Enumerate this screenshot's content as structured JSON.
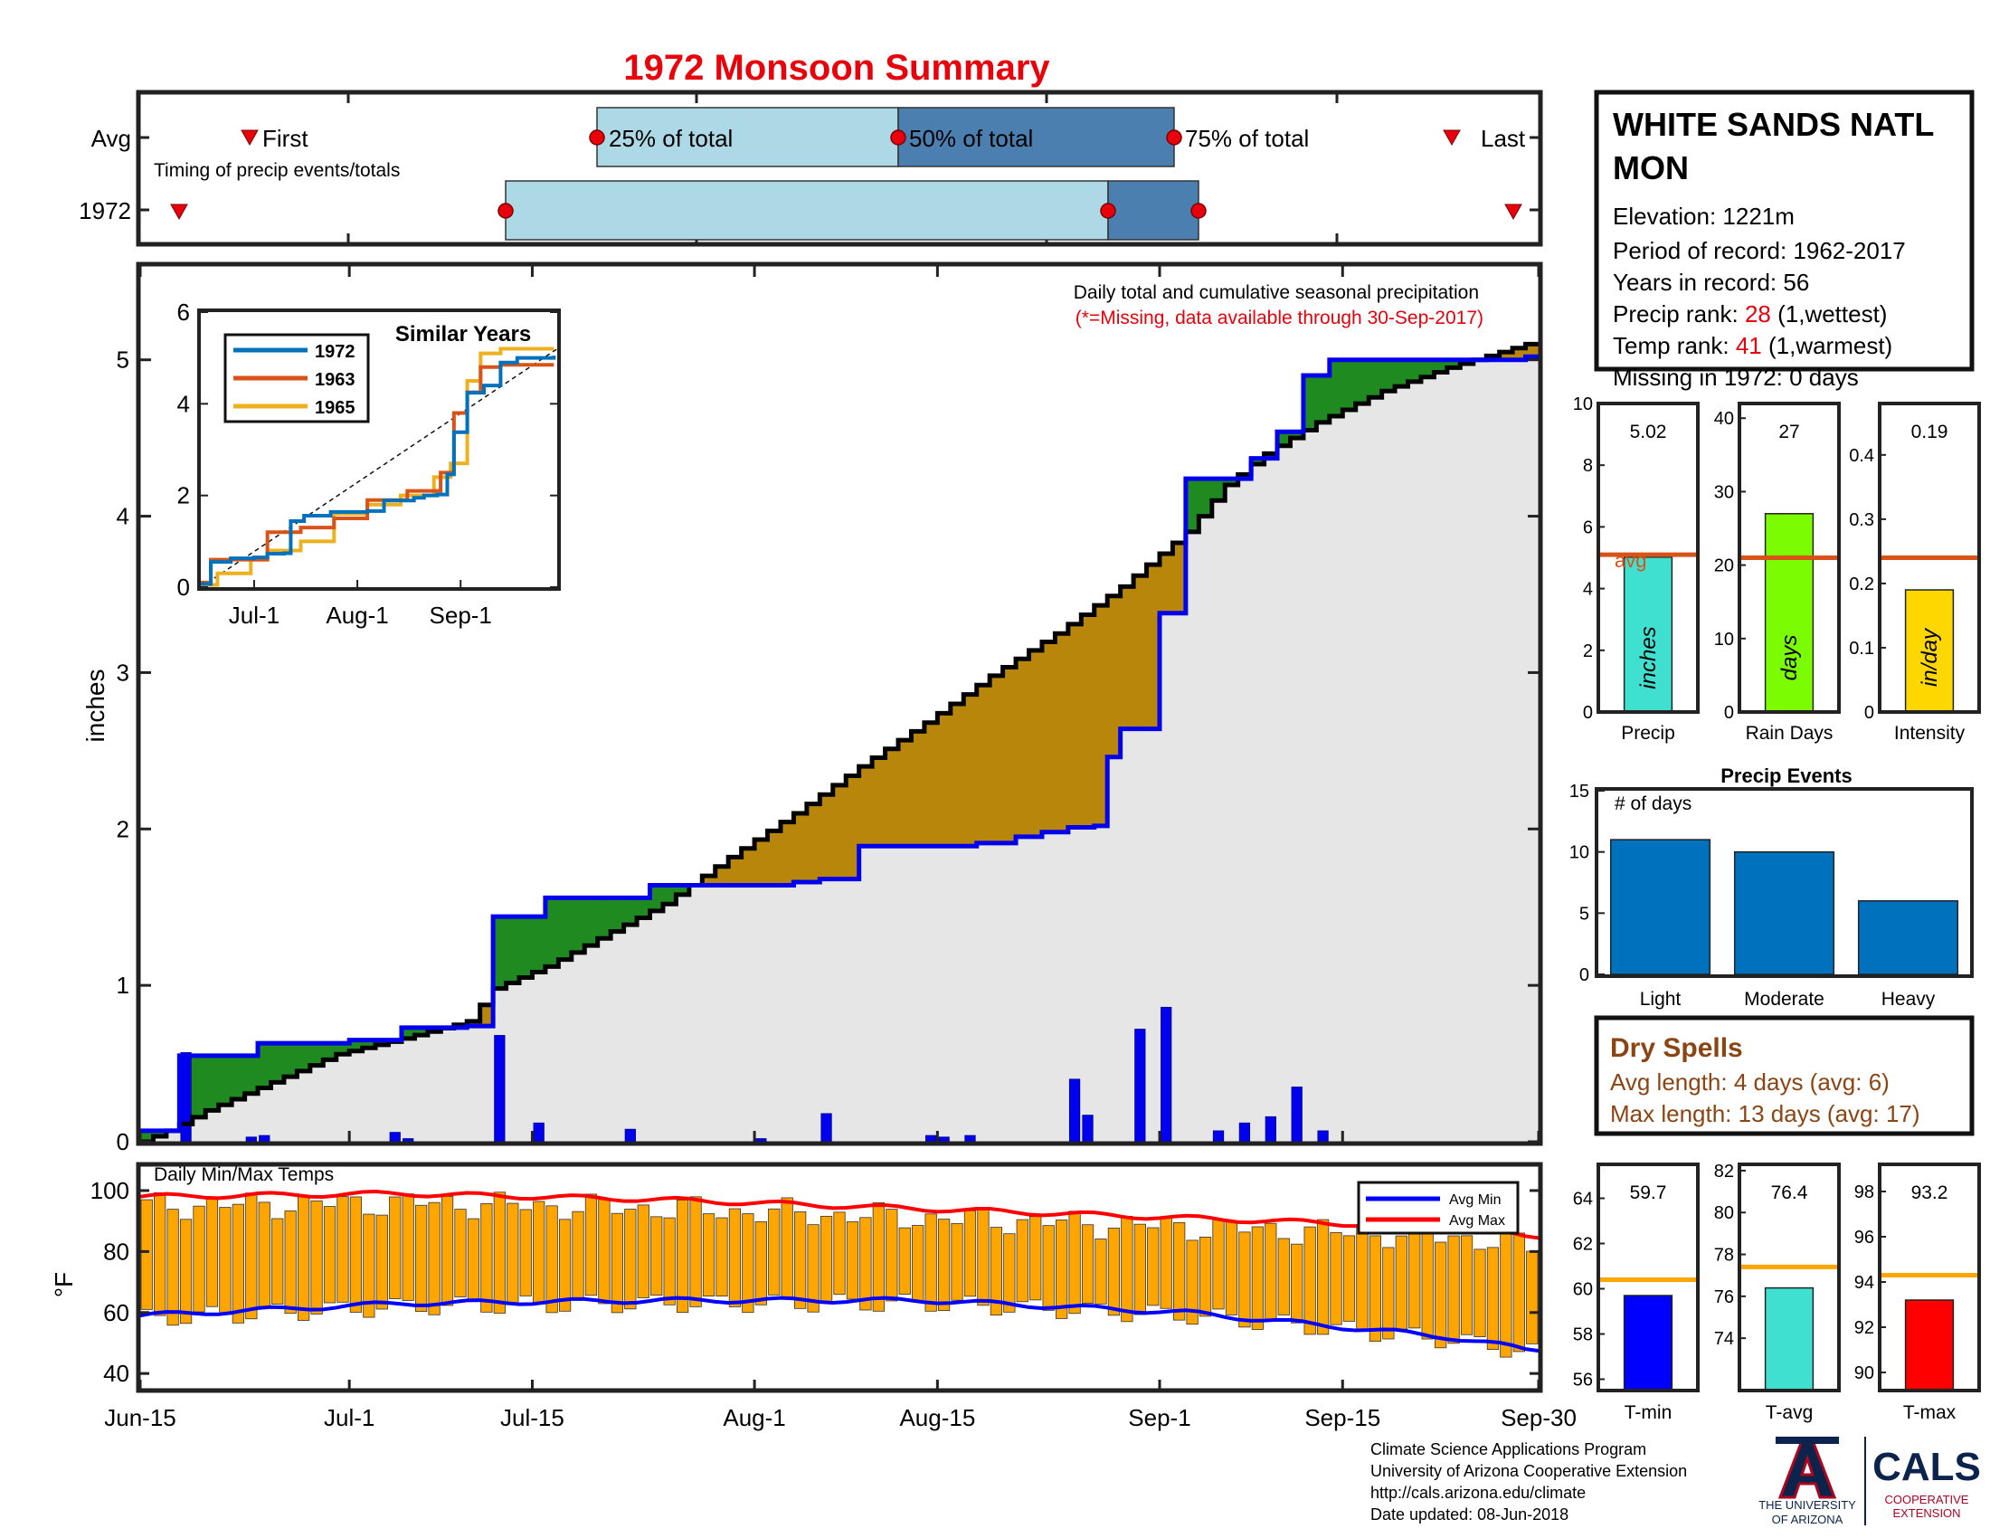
{
  "title": "1972 Monsoon Summary",
  "timing": {
    "caption": "Timing of precip events/totals",
    "row_labels": [
      "Avg",
      "1972"
    ],
    "first_label": "First",
    "last_label": "Last",
    "q25_label": "25% of total",
    "q50_label": "50% of total",
    "q75_label": "75% of total"
  },
  "station": {
    "name_line1": "WHITE SANDS NATL",
    "name_line2": "MON",
    "elevation": "Elevation: 1221m",
    "period": "Period of record: 1962-2017",
    "years": "Years in record: 56",
    "precip_rank_prefix": "Precip rank: ",
    "precip_rank": "28",
    "precip_rank_suffix": " (1,wettest)",
    "temp_rank_prefix": "Temp rank: ",
    "temp_rank": "41",
    "temp_rank_suffix": " (1,warmest)",
    "missing": "Missing in 1972: 0 days"
  },
  "main": {
    "ylabel": "inches",
    "caption": "Daily total and cumulative seasonal precipitation",
    "caption_note": "(*=Missing, data available through 30-Sep-2017)"
  },
  "inset": {
    "title": "Similar Years",
    "legend": [
      "1972",
      "1963",
      "1965"
    ]
  },
  "temps": {
    "caption": "Daily Min/Max Temps",
    "ylabel": "°F",
    "legend_min": "Avg Min",
    "legend_max": "Avg Max"
  },
  "summary_bars": [
    {
      "value_text": "5.02",
      "unit": "inches",
      "label": "Precip",
      "avg_label": "avg"
    },
    {
      "value_text": "27",
      "unit": "days",
      "label": "Rain Days"
    },
    {
      "value_text": "0.19",
      "unit": "in/day",
      "label": "Intensity"
    }
  ],
  "events": {
    "title": "Precip Events",
    "ylabel": "# of days",
    "categories": [
      "Light",
      "Moderate",
      "Heavy"
    ]
  },
  "dry_spells": {
    "title": "Dry Spells",
    "avg_line": "Avg length: 4 days (avg: 6)",
    "max_line": "Max length: 13 days (avg: 17)"
  },
  "temp_summary": [
    {
      "value_text": "59.7",
      "label": "T-min"
    },
    {
      "value_text": "76.4",
      "label": "T-avg"
    },
    {
      "value_text": "93.2",
      "label": "T-max"
    }
  ],
  "footer": {
    "line1": "Climate Science Applications Program",
    "line2": "University of Arizona Cooperative Extension",
    "line3": "http://cals.arizona.edu/climate",
    "line4": " Date updated: 08-Jun-2018"
  },
  "logos": {
    "ua_text1": "THE UNIVERSITY",
    "ua_text2": "OF ARIZONA",
    "cals": "CALS",
    "cals_sub1": "COOPERATIVE",
    "cals_sub2": "EXTENSION"
  },
  "colors": {
    "title": "#e8000b",
    "rank": "#e8000b",
    "dry": "#8b4513",
    "above": "#1f8a1f",
    "below": "#b8860b",
    "fill": "#e6e6e6",
    "obs_line": "#0000ee",
    "avg_line": "#000000",
    "light_blue": "#add8e6",
    "steel_blue": "#4a7fb0",
    "temp_bar": "#ffa500",
    "avg_min": "#0000ff",
    "avg_max": "#ff0000",
    "avg_ref": "#d95319",
    "event_bar": "#0072bd",
    "inset_1972": "#0072bd",
    "inset_1963": "#d95319",
    "inset_1965": "#edb120",
    "ua_navy": "#0c234b",
    "ua_red": "#ab0520"
  },
  "chart_data": [
    {
      "type": "line",
      "name": "cumulative",
      "x_ticks": [
        "Jun-15",
        "Jul-1",
        "Jul-15",
        "Aug-1",
        "Aug-15",
        "Sep-1",
        "Sep-15",
        "Sep-30"
      ],
      "y_ticks": [
        0,
        1,
        2,
        3,
        4,
        5
      ],
      "ylim": [
        0,
        5.6
      ],
      "ylabel": "inches",
      "observed_1972_steps": [
        [
          0,
          0.07
        ],
        [
          3,
          0.55
        ],
        [
          9,
          0.63
        ],
        [
          16,
          0.65
        ],
        [
          20,
          0.73
        ],
        [
          25,
          0.74
        ],
        [
          27,
          1.44
        ],
        [
          31,
          1.56
        ],
        [
          39,
          1.64
        ],
        [
          50,
          1.66
        ],
        [
          52,
          1.68
        ],
        [
          55,
          1.89
        ],
        [
          64,
          1.91
        ],
        [
          67,
          1.95
        ],
        [
          69,
          1.98
        ],
        [
          71,
          2.01
        ],
        [
          73,
          2.02
        ],
        [
          74,
          2.46
        ],
        [
          75,
          2.64
        ],
        [
          78,
          3.38
        ],
        [
          80,
          4.24
        ],
        [
          85,
          4.37
        ],
        [
          87,
          4.54
        ],
        [
          89,
          4.9
        ],
        [
          91,
          5.0
        ],
        [
          106,
          5.02
        ]
      ],
      "average_cumulative": [
        [
          0,
          0
        ],
        [
          2,
          0.07
        ],
        [
          5,
          0.2
        ],
        [
          10,
          0.38
        ],
        [
          15,
          0.56
        ],
        [
          20,
          0.66
        ],
        [
          25,
          0.77
        ],
        [
          27,
          0.98
        ],
        [
          31,
          1.12
        ],
        [
          35,
          1.3
        ],
        [
          40,
          1.52
        ],
        [
          45,
          1.82
        ],
        [
          50,
          2.1
        ],
        [
          55,
          2.4
        ],
        [
          60,
          2.68
        ],
        [
          65,
          2.98
        ],
        [
          70,
          3.25
        ],
        [
          75,
          3.55
        ],
        [
          80,
          3.9
        ],
        [
          83,
          4.2
        ],
        [
          86,
          4.4
        ],
        [
          90,
          4.6
        ],
        [
          95,
          4.8
        ],
        [
          100,
          4.95
        ],
        [
          106,
          5.1
        ]
      ],
      "daily_precip": [
        [
          3,
          0.57
        ],
        [
          8,
          0.03
        ],
        [
          9,
          0.04
        ],
        [
          19,
          0.06
        ],
        [
          20,
          0.02
        ],
        [
          27,
          0.68
        ],
        [
          30,
          0.12
        ],
        [
          37,
          0.08
        ],
        [
          47,
          0.02
        ],
        [
          52,
          0.18
        ],
        [
          60,
          0.04
        ],
        [
          61,
          0.03
        ],
        [
          63,
          0.04
        ],
        [
          71,
          0.4
        ],
        [
          72,
          0.17
        ],
        [
          76,
          0.72
        ],
        [
          78,
          0.86
        ],
        [
          82,
          0.07
        ],
        [
          84,
          0.12
        ],
        [
          86,
          0.16
        ],
        [
          88,
          0.35
        ],
        [
          90,
          0.07
        ]
      ]
    },
    {
      "type": "line",
      "name": "similar_years",
      "title": "Similar Years",
      "x_ticks": [
        "Jul-1",
        "Aug-1",
        "Sep-1"
      ],
      "y_ticks": [
        0,
        2,
        4,
        6
      ],
      "ylim": [
        0,
        6
      ],
      "series": [
        {
          "name": "1972",
          "points": [
            [
              0,
              0.07
            ],
            [
              3,
              0.55
            ],
            [
              9,
              0.63
            ],
            [
              16,
              0.65
            ],
            [
              20,
              0.73
            ],
            [
              25,
              0.74
            ],
            [
              27,
              1.44
            ],
            [
              31,
              1.56
            ],
            [
              39,
              1.64
            ],
            [
              50,
              1.66
            ],
            [
              55,
              1.89
            ],
            [
              64,
              1.95
            ],
            [
              67,
              2.0
            ],
            [
              71,
              2.02
            ],
            [
              74,
              2.46
            ],
            [
              76,
              3.38
            ],
            [
              80,
              4.24
            ],
            [
              85,
              4.4
            ],
            [
              90,
              4.9
            ],
            [
              95,
              5.0
            ],
            [
              106,
              5.05
            ]
          ]
        },
        {
          "name": "1963",
          "points": [
            [
              0,
              0.1
            ],
            [
              3,
              0.6
            ],
            [
              15,
              0.6
            ],
            [
              20,
              1.2
            ],
            [
              30,
              1.3
            ],
            [
              40,
              1.5
            ],
            [
              50,
              1.9
            ],
            [
              62,
              2.1
            ],
            [
              72,
              2.5
            ],
            [
              76,
              3.8
            ],
            [
              80,
              4.25
            ],
            [
              84,
              4.8
            ],
            [
              90,
              4.85
            ],
            [
              106,
              4.85
            ]
          ]
        },
        {
          "name": "1965",
          "points": [
            [
              0,
              0.05
            ],
            [
              5,
              0.3
            ],
            [
              15,
              0.6
            ],
            [
              20,
              0.8
            ],
            [
              30,
              1.0
            ],
            [
              40,
              1.6
            ],
            [
              50,
              1.8
            ],
            [
              60,
              2.0
            ],
            [
              70,
              2.4
            ],
            [
              75,
              2.7
            ],
            [
              80,
              4.5
            ],
            [
              84,
              5.1
            ],
            [
              90,
              5.2
            ],
            [
              106,
              5.2
            ]
          ]
        }
      ]
    },
    {
      "type": "bar",
      "name": "daily_temps",
      "x_ticks": [
        "Jun-15",
        "Jul-1",
        "Jul-15",
        "Aug-1",
        "Aug-15",
        "Sep-1",
        "Sep-15",
        "Sep-30"
      ],
      "y_ticks": [
        40,
        60,
        80,
        100
      ],
      "ylim": [
        35,
        108
      ],
      "ylabel": "°F",
      "avg_min": [
        [
          0,
          59
        ],
        [
          20,
          63
        ],
        [
          40,
          64
        ],
        [
          60,
          64
        ],
        [
          80,
          60
        ],
        [
          100,
          52
        ],
        [
          106,
          48
        ]
      ],
      "avg_max": [
        [
          0,
          98
        ],
        [
          20,
          99
        ],
        [
          40,
          97
        ],
        [
          60,
          94
        ],
        [
          80,
          91
        ],
        [
          100,
          88
        ],
        [
          106,
          85
        ]
      ]
    },
    {
      "type": "bar",
      "categories": [
        "Precip"
      ],
      "values": [
        5.02
      ],
      "average": 5.1,
      "ylim": [
        0,
        10
      ],
      "y_ticks": [
        0,
        2,
        4,
        6,
        8,
        10
      ],
      "unit": "inches"
    },
    {
      "type": "bar",
      "categories": [
        "Rain Days"
      ],
      "values": [
        27
      ],
      "average": 21,
      "ylim": [
        0,
        42
      ],
      "y_ticks": [
        0,
        10,
        20,
        30,
        40
      ],
      "unit": "days"
    },
    {
      "type": "bar",
      "categories": [
        "Intensity"
      ],
      "values": [
        0.19
      ],
      "average": 0.24,
      "ylim": [
        0,
        0.48
      ],
      "y_ticks": [
        0,
        0.1,
        0.2,
        0.3,
        0.4
      ],
      "unit": "in/day"
    },
    {
      "type": "bar",
      "title": "Precip Events",
      "categories": [
        "Light",
        "Moderate",
        "Heavy"
      ],
      "values": [
        11,
        10,
        6
      ],
      "ylim": [
        0,
        15
      ],
      "y_ticks": [
        0,
        5,
        10,
        15
      ],
      "ylabel": "# of days"
    },
    {
      "type": "bar",
      "categories": [
        "T-min"
      ],
      "values": [
        59.7
      ],
      "average": 60.4,
      "ylim": [
        55.5,
        65.5
      ],
      "y_ticks": [
        56,
        58,
        60,
        62,
        64
      ]
    },
    {
      "type": "bar",
      "categories": [
        "T-avg"
      ],
      "values": [
        76.4
      ],
      "average": 77.4,
      "ylim": [
        71.5,
        82.3
      ],
      "y_ticks": [
        74,
        76,
        78,
        80,
        82
      ]
    },
    {
      "type": "bar",
      "categories": [
        "T-max"
      ],
      "values": [
        93.2
      ],
      "average": 94.3,
      "ylim": [
        89.2,
        99.2
      ],
      "y_ticks": [
        90,
        92,
        94,
        96,
        98
      ]
    }
  ]
}
